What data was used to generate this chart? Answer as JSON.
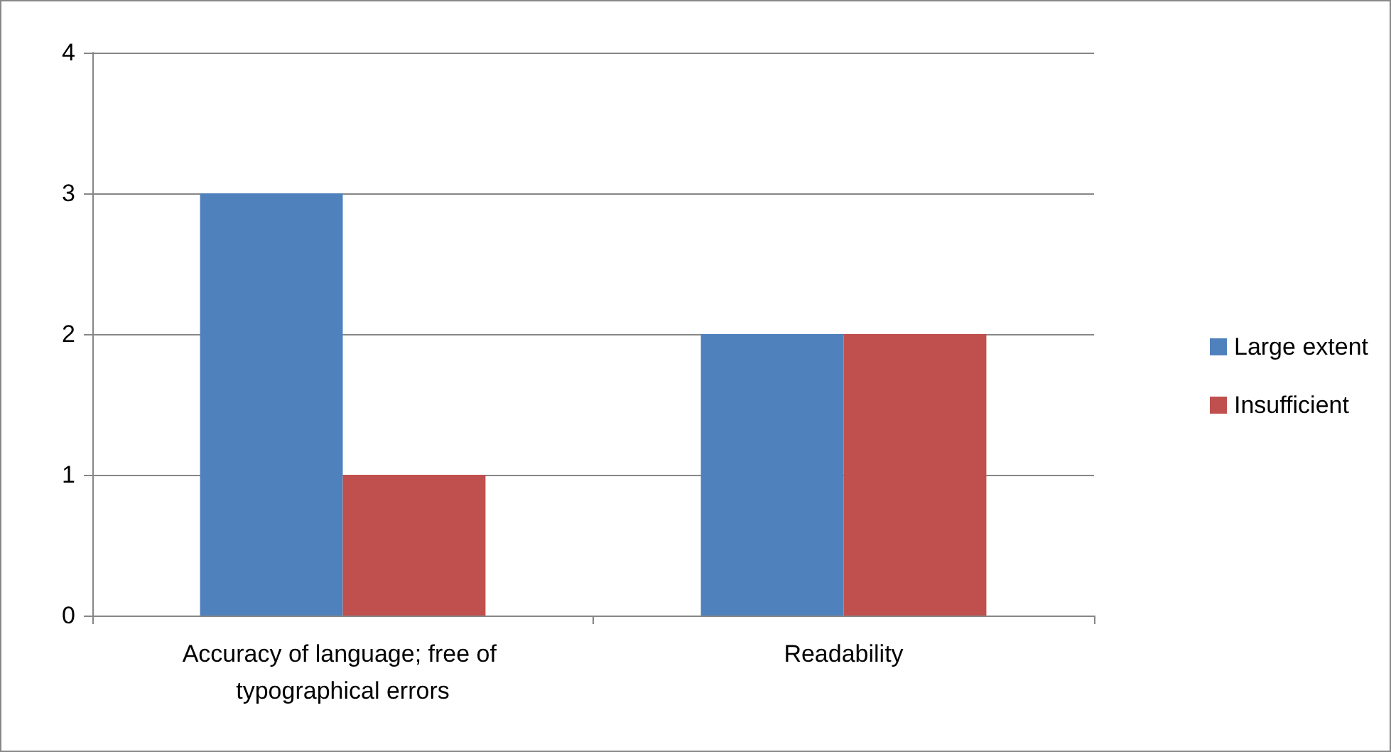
{
  "chart_data": {
    "type": "bar",
    "categories": [
      "Accuracy of language; free of typographical errors",
      "Readability"
    ],
    "series": [
      {
        "name": "Large extent",
        "color": "#4f81bd",
        "values": [
          3,
          2
        ]
      },
      {
        "name": "Insufficient",
        "color": "#c0504d",
        "values": [
          1,
          2
        ]
      }
    ],
    "ylim": [
      0,
      4
    ],
    "yticks": [
      0,
      1,
      2,
      3,
      4
    ],
    "grid": "y",
    "legend": "right"
  }
}
